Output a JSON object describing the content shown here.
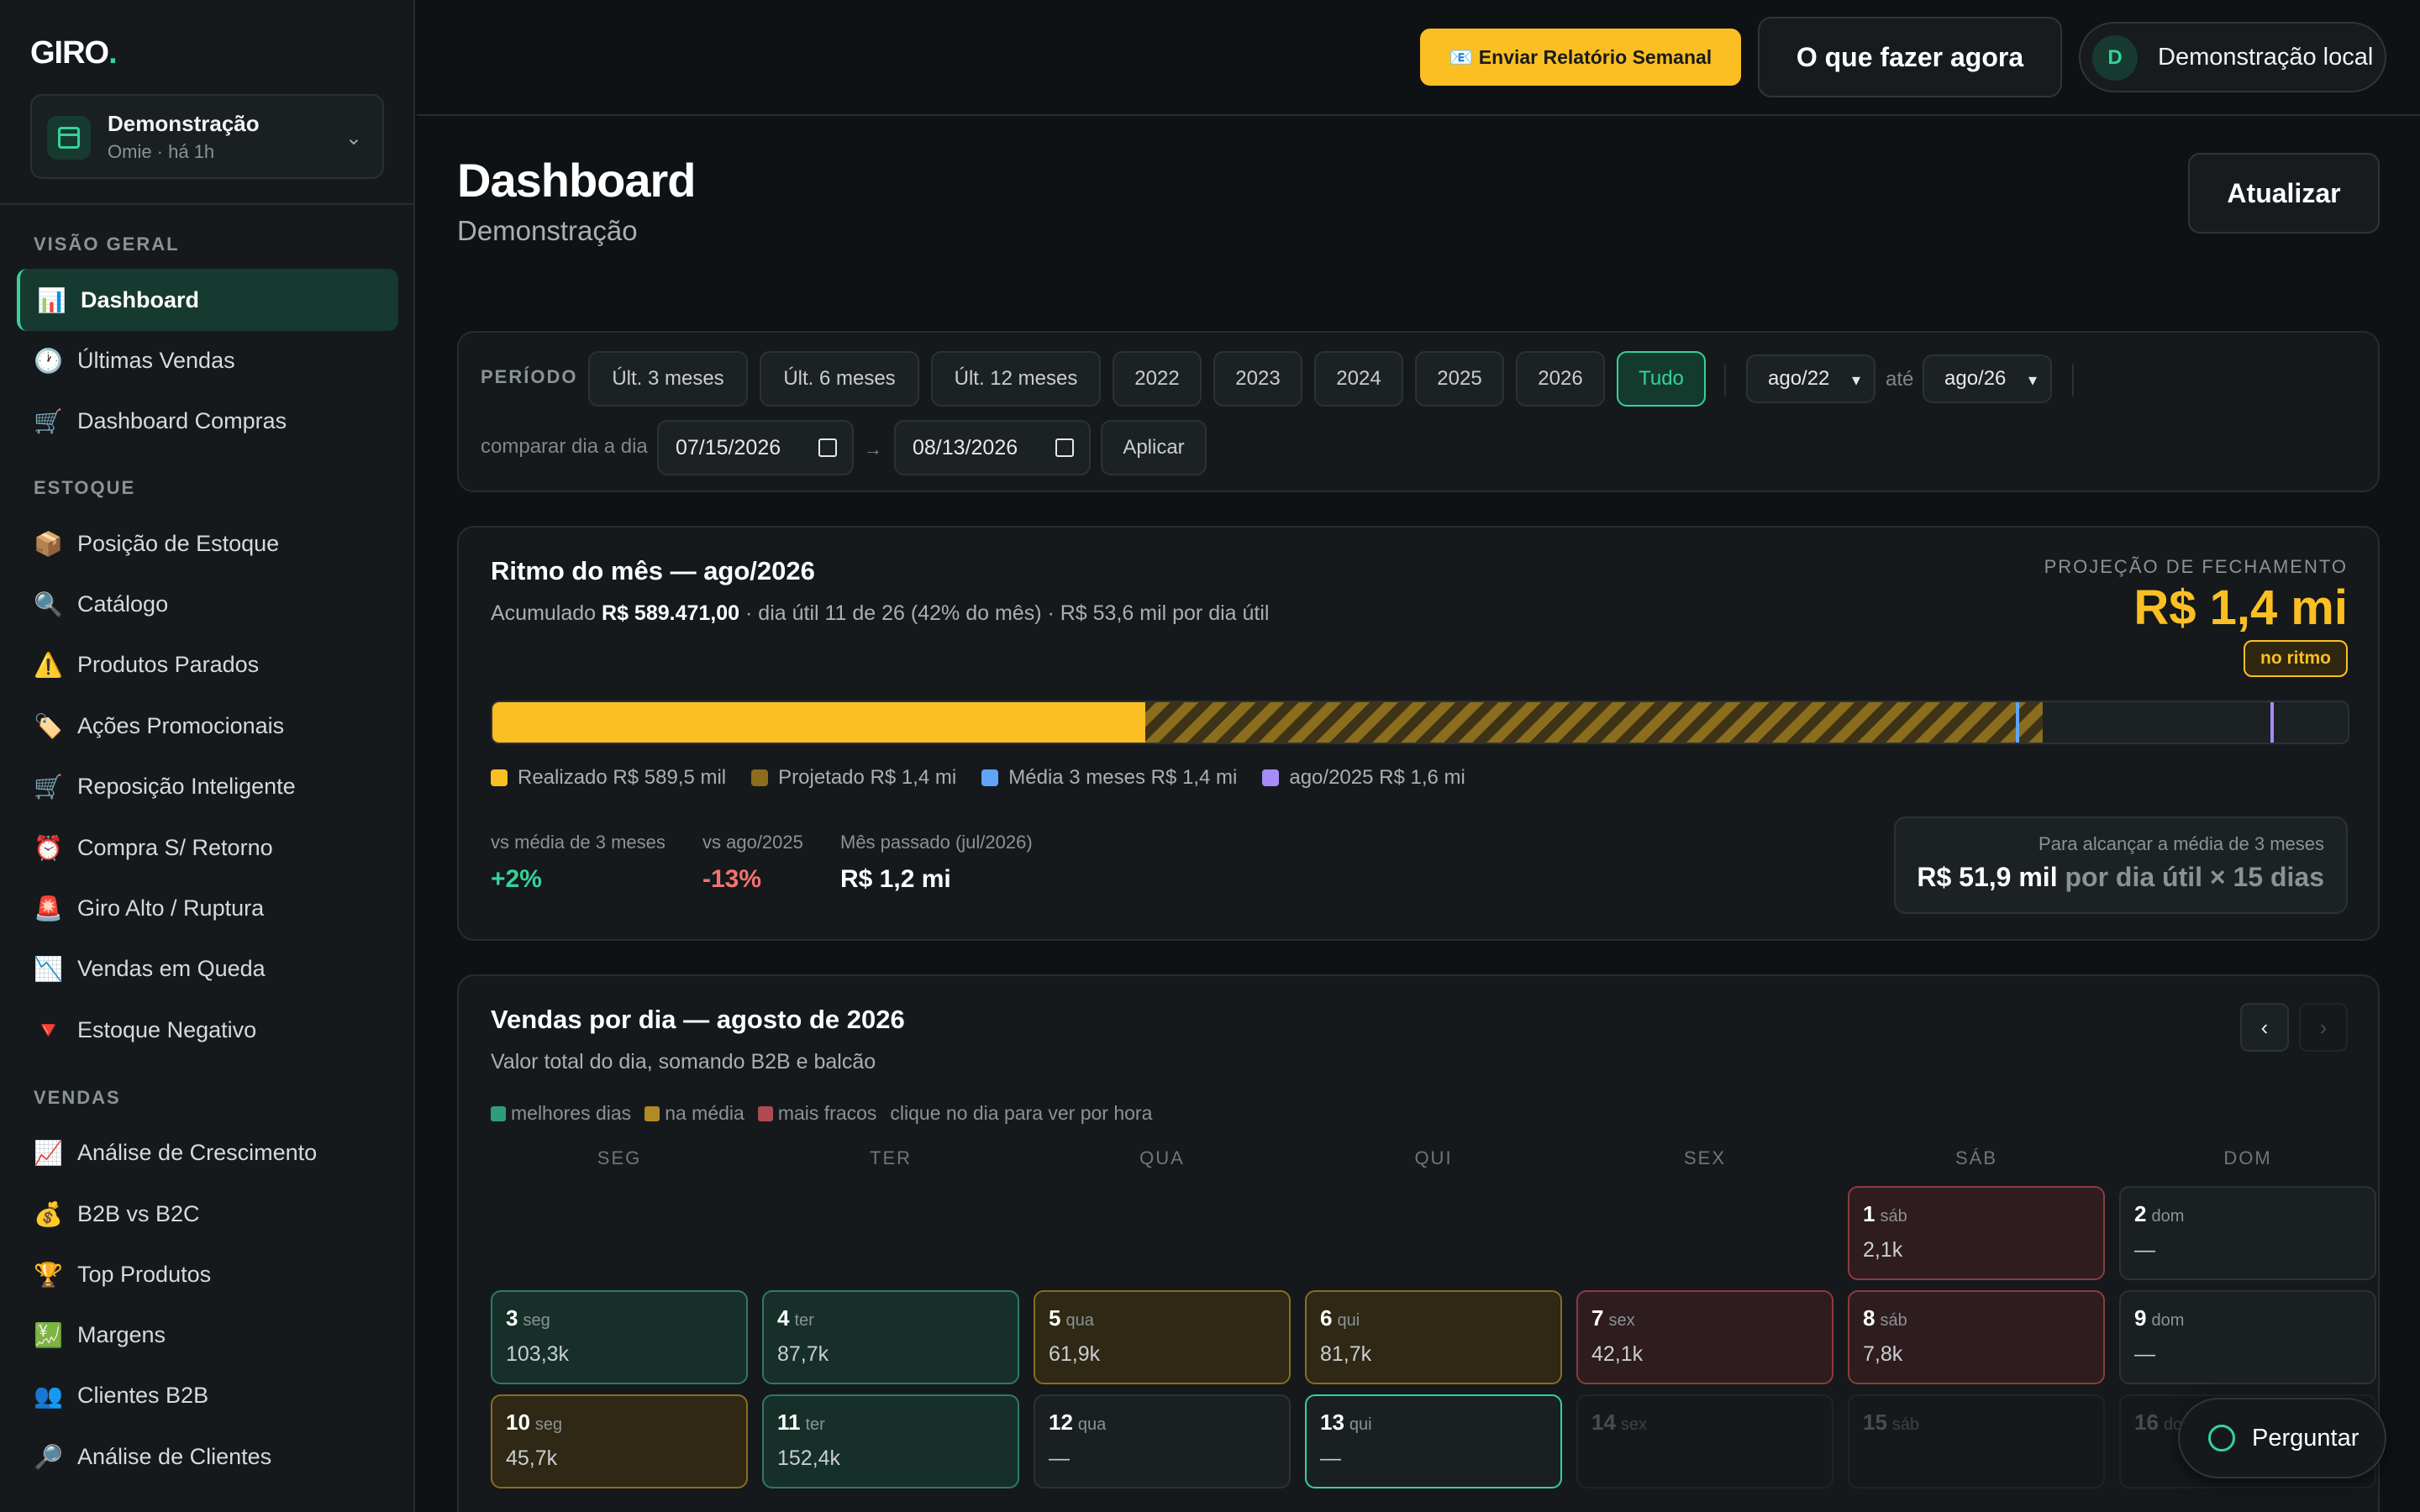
{
  "brand": {
    "name": "GIRO",
    "dot": "."
  },
  "account": {
    "name": "Demonstração",
    "sub": "Omie · há 1h"
  },
  "sidebar": {
    "sections": [
      {
        "title": "VISÃO GERAL"
      },
      {
        "title": "ESTOQUE"
      },
      {
        "title": "VENDAS"
      }
    ],
    "items": [
      {
        "icon": "📊",
        "label": "Dashboard"
      },
      {
        "icon": "🕐",
        "label": "Últimas Vendas"
      },
      {
        "icon": "🛒",
        "label": "Dashboard Compras"
      },
      {
        "icon": "📦",
        "label": "Posição de Estoque"
      },
      {
        "icon": "🔍",
        "label": "Catálogo"
      },
      {
        "icon": "⚠️",
        "label": "Produtos Parados"
      },
      {
        "icon": "🏷️",
        "label": "Ações Promocionais"
      },
      {
        "icon": "🛒",
        "label": "Reposição Inteligente"
      },
      {
        "icon": "⏰",
        "label": "Compra S/ Retorno"
      },
      {
        "icon": "🚨",
        "label": "Giro Alto / Ruptura"
      },
      {
        "icon": "📉",
        "label": "Vendas em Queda"
      },
      {
        "icon": "🔻",
        "label": "Estoque Negativo"
      },
      {
        "icon": "📈",
        "label": "Análise de Crescimento"
      },
      {
        "icon": "💰",
        "label": "B2B vs B2C"
      },
      {
        "icon": "🏆",
        "label": "Top Produtos"
      },
      {
        "icon": "💹",
        "label": "Margens"
      },
      {
        "icon": "👥",
        "label": "Clientes B2B"
      },
      {
        "icon": "🔎",
        "label": "Análise de Clientes"
      }
    ]
  },
  "topbar": {
    "report_label": "📧 Enviar Relatório Semanal",
    "todo_label": "O que fazer agora",
    "user_initial": "D",
    "user_name": "Demonstração local"
  },
  "page": {
    "title": "Dashboard",
    "subtitle": "Demonstração",
    "refresh_label": "Atualizar"
  },
  "filter": {
    "label": "PERÍODO",
    "chips": [
      "Últ. 3 meses",
      "Últ. 6 meses",
      "Últ. 12 meses",
      "2022",
      "2023",
      "2024",
      "2025",
      "2026",
      "Tudo"
    ],
    "active_chip": "Tudo",
    "from": "ago/22",
    "to_label": "até",
    "to": "ago/26",
    "compare_label": "comparar dia a dia",
    "date_from": "07/15/2026",
    "arrow": "→",
    "date_to": "08/13/2026",
    "apply_label": "Aplicar"
  },
  "ritmo": {
    "title": "Ritmo do mês — ago/2026",
    "desc_prefix": "Acumulado",
    "accumulated": "R$ 589.471,00",
    "desc_suffix": "· dia útil 11 de 26 (42% do mês) · R$ 53,6 mil por dia útil",
    "projection_label": "PROJEÇÃO DE FECHAMENTO",
    "projection_value": "R$ 1,4 mi",
    "pace_badge": "no ritmo",
    "bar": {
      "scale_max": 1.675,
      "realizado": 0.5895,
      "projetado": 1.4,
      "media_3m": 1.375,
      "ago_2025": 1.605
    },
    "legend": [
      {
        "label": "Realizado R$ 589,5 mil",
        "color": "#fbbf24"
      },
      {
        "label": "Projetado R$ 1,4 mi",
        "color": "#8a6d1d"
      },
      {
        "label": "Média 3 meses R$ 1,4 mi",
        "color": "#60a5fa"
      },
      {
        "label": "ago/2025 R$ 1,6 mi",
        "color": "#a78bfa"
      }
    ],
    "stats": [
      {
        "label": "vs média de 3 meses",
        "value": "+2%",
        "color": "#34d399"
      },
      {
        "label": "vs ago/2025",
        "value": "-13%",
        "color": "#f87171"
      },
      {
        "label": "Mês passado (jul/2026)",
        "value": "R$ 1,2 mi",
        "color": "#ffffff"
      }
    ],
    "need_label": "Para alcançar a média de 3 meses",
    "need_value": "R$ 51,9 mil",
    "need_suffix": "por dia útil × 15 dias"
  },
  "vendas": {
    "title": "Vendas por dia — agosto de 2026",
    "subtitle": "Valor total do dia, somando B2B e balcão",
    "legend": [
      {
        "label": "melhores dias",
        "color": "#2f9e78"
      },
      {
        "label": "na média",
        "color": "#b08a22"
      },
      {
        "label": "mais fracos",
        "color": "#b04a50"
      }
    ],
    "hint": "clique no dia para ver por hora",
    "prev": "‹",
    "next": "›",
    "weekdays": [
      "SEG",
      "TER",
      "QUA",
      "QUI",
      "SEX",
      "SÁB",
      "DOM"
    ],
    "days": [
      {
        "n": "1",
        "w": "sáb",
        "v": "2,1k",
        "t": "r"
      },
      {
        "n": "2",
        "w": "dom",
        "v": "—",
        "t": ""
      },
      {
        "n": "3",
        "w": "seg",
        "v": "103,3k",
        "t": "g"
      },
      {
        "n": "4",
        "w": "ter",
        "v": "87,7k",
        "t": "g"
      },
      {
        "n": "5",
        "w": "qua",
        "v": "61,9k",
        "t": "y"
      },
      {
        "n": "6",
        "w": "qui",
        "v": "81,7k",
        "t": "y"
      },
      {
        "n": "7",
        "w": "sex",
        "v": "42,1k",
        "t": "r"
      },
      {
        "n": "8",
        "w": "sáb",
        "v": "7,8k",
        "t": "r"
      },
      {
        "n": "9",
        "w": "dom",
        "v": "—",
        "t": ""
      },
      {
        "n": "10",
        "w": "seg",
        "v": "45,7k",
        "t": "y"
      },
      {
        "n": "11",
        "w": "ter",
        "v": "152,4k",
        "t": "g"
      },
      {
        "n": "12",
        "w": "qua",
        "v": "—",
        "t": ""
      },
      {
        "n": "13",
        "w": "qui",
        "v": "—",
        "t": "today"
      },
      {
        "n": "14",
        "w": "sex",
        "v": "",
        "t": "fut"
      },
      {
        "n": "15",
        "w": "sáb",
        "v": "",
        "t": "fut"
      },
      {
        "n": "16",
        "w": "dom",
        "v": "",
        "t": "fut"
      }
    ]
  },
  "ask_label": "Perguntar"
}
